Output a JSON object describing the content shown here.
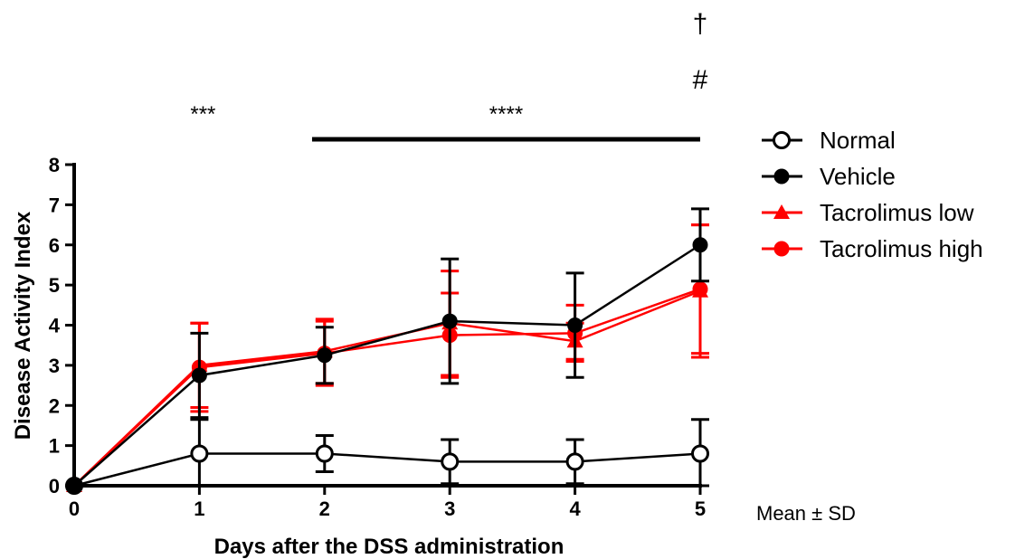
{
  "chart_data": {
    "type": "line",
    "xlabel": "Days after the DSS administration",
    "ylabel": "Disease Activity Index",
    "x": [
      0,
      1,
      2,
      3,
      4,
      5
    ],
    "xlim": [
      0,
      5
    ],
    "ylim": [
      0,
      8
    ],
    "x_ticks": [
      "0",
      "1",
      "2",
      "3",
      "4",
      "5"
    ],
    "y_ticks": [
      "0",
      "1",
      "2",
      "3",
      "4",
      "5",
      "6",
      "7",
      "8"
    ],
    "grid": false,
    "legend_position": "right",
    "series": [
      {
        "name": "Normal",
        "marker": "open-circle",
        "color": "#000000",
        "values": [
          0,
          0.8,
          0.8,
          0.6,
          0.6,
          0.8
        ],
        "error": [
          0,
          0.85,
          0.45,
          0.55,
          0.55,
          0.85
        ]
      },
      {
        "name": "Vehicle",
        "marker": "filled-circle",
        "color": "#000000",
        "values": [
          0,
          2.75,
          3.25,
          4.1,
          4.0,
          6.0
        ],
        "error": [
          0,
          1.05,
          0.7,
          1.55,
          1.3,
          0.9
        ]
      },
      {
        "name": "Tacrolimus low",
        "marker": "triangle",
        "color": "#ff0000",
        "values": [
          0,
          3.0,
          3.35,
          4.05,
          3.6,
          4.85
        ],
        "error": [
          0,
          1.05,
          0.8,
          1.3,
          0.45,
          1.65
        ]
      },
      {
        "name": "Tacrolimus high",
        "marker": "filled-circle",
        "color": "#ff0000",
        "values": [
          0,
          2.95,
          3.3,
          3.75,
          3.8,
          4.9
        ],
        "error": [
          0,
          1.1,
          0.8,
          1.05,
          0.7,
          1.6
        ]
      }
    ],
    "annotations": {
      "sig_day1": "***",
      "sig_days2to5": "****",
      "sig_bar_from": 1.9,
      "sig_bar_to": 5,
      "dagger": "†",
      "hash": "#",
      "stat_note": "Mean ± SD"
    }
  }
}
